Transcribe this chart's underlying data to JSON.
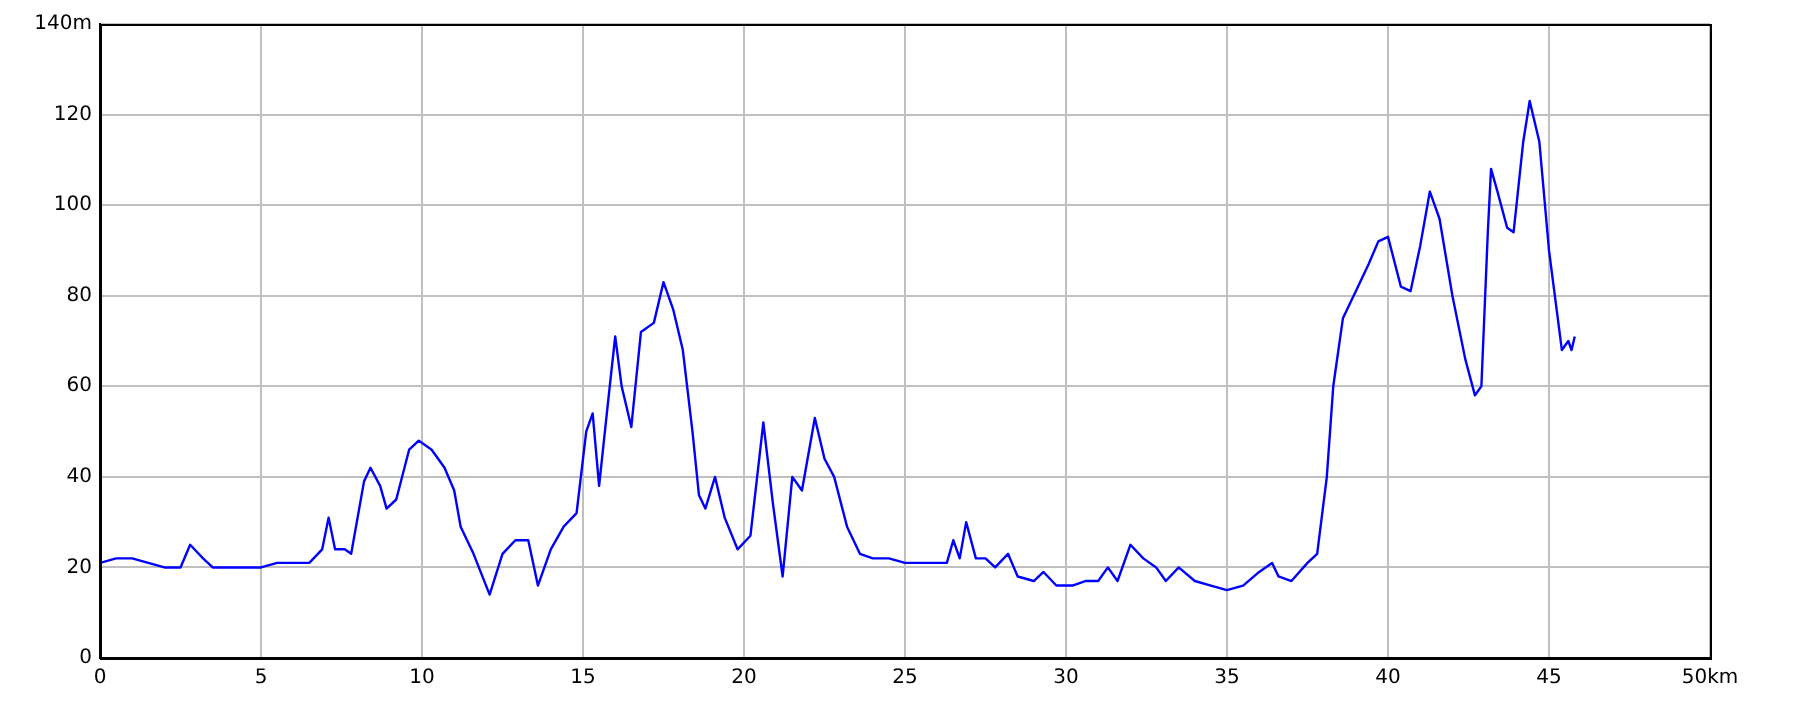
{
  "chart_data": {
    "type": "line",
    "grid": true,
    "line_style": "solid",
    "marker": "none",
    "xlim": [
      0,
      50
    ],
    "xticks": [
      0,
      5,
      10,
      15,
      20,
      25,
      30,
      35,
      40,
      45,
      {
        "value": 50,
        "label": "50km"
      }
    ],
    "ylim": [
      0,
      140
    ],
    "yticks": [
      0,
      20,
      40,
      60,
      80,
      100,
      120,
      {
        "value": 140,
        "label": "140m"
      }
    ],
    "series": [
      {
        "color": "#0000ff",
        "x": [
          0,
          0.5,
          1,
          1.5,
          2,
          2.5,
          2.8,
          3.2,
          3.5,
          4,
          4.5,
          5,
          5.5,
          6,
          6.5,
          6.9,
          7.1,
          7.3,
          7.6,
          7.8,
          8.2,
          8.4,
          8.7,
          8.9,
          9.2,
          9.6,
          9.9,
          10.3,
          10.7,
          11,
          11.2,
          11.6,
          12.1,
          12.5,
          12.9,
          13.3,
          13.6,
          14,
          14.4,
          14.8,
          15.1,
          15.3,
          15.5,
          15.8,
          16,
          16.2,
          16.5,
          16.8,
          17.2,
          17.5,
          17.8,
          18.1,
          18.4,
          18.6,
          18.8,
          19.1,
          19.4,
          19.8,
          20.2,
          20.6,
          20.9,
          21.2,
          21.5,
          21.8,
          22.2,
          22.5,
          22.8,
          23.2,
          23.6,
          24,
          24.5,
          25,
          26,
          26.3,
          26.5,
          26.7,
          26.9,
          27.2,
          27.5,
          27.8,
          28.2,
          28.5,
          29,
          29.3,
          29.7,
          30.2,
          30.6,
          31,
          31.3,
          31.6,
          32,
          32.4,
          32.8,
          33.1,
          33.5,
          34,
          34.5,
          35,
          35.5,
          36,
          36.4,
          36.6,
          37,
          37.5,
          37.8,
          38.1,
          38.3,
          38.6,
          39,
          39.4,
          39.7,
          40,
          40.4,
          40.7,
          41,
          41.3,
          41.6,
          42,
          42.4,
          42.7,
          42.9,
          43.1,
          43.2,
          43.4,
          43.7,
          43.9,
          44.2,
          44.4,
          44.7,
          45,
          45.4,
          45.6,
          45.7,
          45.8
        ],
        "values": [
          21,
          22,
          22,
          21,
          20,
          20,
          25,
          22,
          20,
          20,
          20,
          20,
          21,
          21,
          21,
          24,
          31,
          24,
          24,
          23,
          39,
          42,
          38,
          33,
          35,
          46,
          48,
          46,
          42,
          37,
          29,
          23,
          14,
          23,
          26,
          26,
          16,
          24,
          29,
          32,
          50,
          54,
          38,
          58,
          71,
          60,
          51,
          72,
          74,
          83,
          77,
          68,
          50,
          36,
          33,
          40,
          31,
          24,
          27,
          52,
          34,
          18,
          40,
          37,
          53,
          44,
          40,
          29,
          23,
          22,
          22,
          21,
          21,
          21,
          26,
          22,
          30,
          22,
          22,
          20,
          23,
          18,
          17,
          19,
          16,
          16,
          17,
          17,
          20,
          17,
          25,
          22,
          20,
          17,
          20,
          17,
          16,
          15,
          16,
          19,
          21,
          18,
          17,
          21,
          23,
          40,
          60,
          75,
          81,
          87,
          92,
          93,
          82,
          81,
          91,
          103,
          97,
          80,
          66,
          58,
          60,
          94,
          108,
          103,
          95,
          94,
          114,
          123,
          114,
          90,
          68,
          70,
          68,
          71
        ]
      }
    ]
  }
}
